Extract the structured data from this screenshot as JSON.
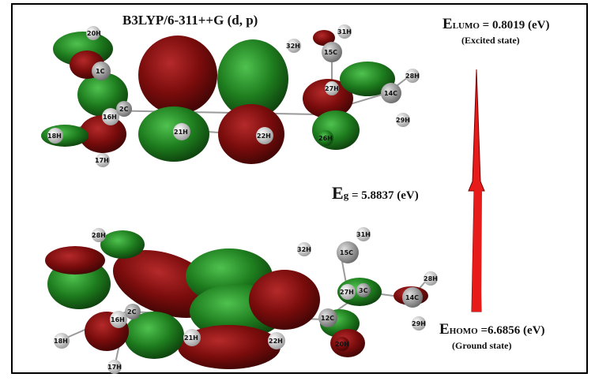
{
  "title": "B3LYP/6-311++G (d, p)",
  "lumo": {
    "E": "E",
    "sub": "LUMO",
    "value": " = 0.8019 (eV)",
    "state": "(Excited state)"
  },
  "gap": {
    "E": "E",
    "sub": "g",
    "value": " = 5.8837 (eV)"
  },
  "homo": {
    "E": "E",
    "sub": "HOMO",
    "value": " =6.6856 (eV)",
    "state": "(Ground state)"
  },
  "colors": {
    "positive_lobe": "#1e7d1e",
    "negative_lobe": "#7a0c0c",
    "arrow": "#e81b1b",
    "atom_H": "#d8d8d8",
    "atom_C": "#a0a0a0"
  },
  "lumo_atoms": [
    "20H",
    "1C",
    "16H",
    "2C",
    "18H",
    "17H",
    "21H",
    "22H",
    "26H",
    "32H",
    "31H",
    "15C",
    "27H",
    "14C",
    "28H",
    "29H"
  ],
  "homo_atoms": [
    "28H",
    "16H",
    "2C",
    "18H",
    "17H",
    "21H",
    "22H",
    "12C",
    "20H",
    "32H",
    "31H",
    "15C",
    "27H",
    "3C",
    "14C",
    "28H",
    "29H"
  ]
}
